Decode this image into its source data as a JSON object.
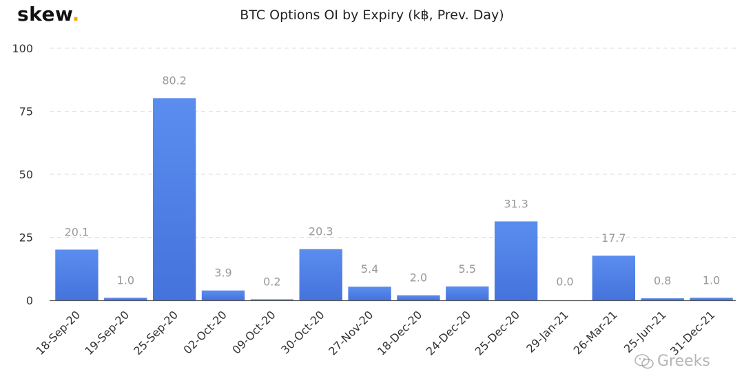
{
  "logo": {
    "text": "skew",
    "dot": "."
  },
  "watermark": {
    "text": "Greeks",
    "icon": "wechat-icon"
  },
  "colors": {
    "bar": "#5b8def",
    "bar_dark": "#4473db",
    "grid": "#dddddd",
    "axis_text": "#333333",
    "label_text": "#999999",
    "accent": "#f2a900"
  },
  "chart_data": {
    "type": "bar",
    "title": "BTC Options OI by Expiry (k฿, Prev. Day)",
    "xlabel": "",
    "ylabel": "",
    "categories": [
      "18-Sep-20",
      "19-Sep-20",
      "25-Sep-20",
      "02-Oct-20",
      "09-Oct-20",
      "30-Oct-20",
      "27-Nov-20",
      "18-Dec-20",
      "24-Dec-20",
      "25-Dec-20",
      "29-Jan-21",
      "26-Mar-21",
      "25-Jun-21",
      "31-Dec-21"
    ],
    "values": [
      20.1,
      1.0,
      80.2,
      3.9,
      0.2,
      20.3,
      5.4,
      2.0,
      5.5,
      31.3,
      0.0,
      17.7,
      0.8,
      1.0
    ],
    "data_labels": [
      "20.1",
      "1.0",
      "80.2",
      "3.9",
      "0.2",
      "20.3",
      "5.4",
      "2.0",
      "5.5",
      "31.3",
      "0.0",
      "17.7",
      "0.8",
      "1.0"
    ],
    "ylim": [
      0,
      100
    ],
    "yticks": [
      "0",
      "25",
      "50",
      "75",
      "100"
    ],
    "grid": true,
    "legend": "none"
  }
}
